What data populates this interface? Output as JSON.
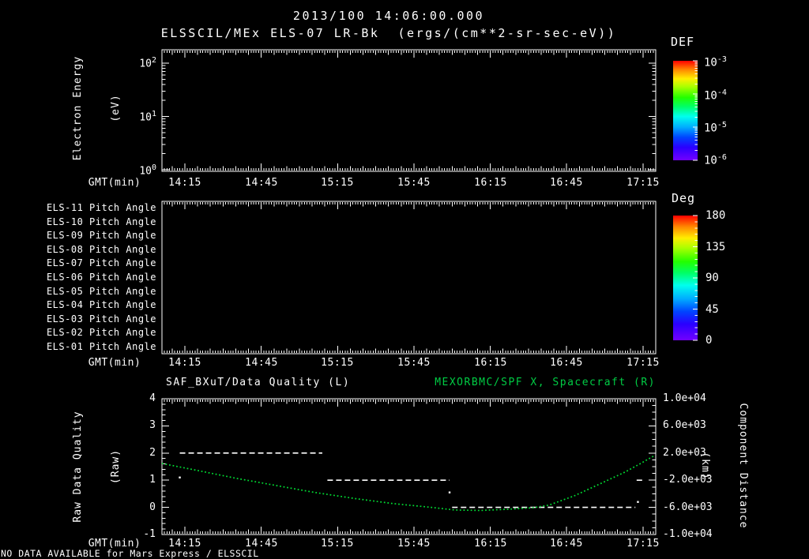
{
  "header": {
    "title_line1": "2013/100 14:06:00.000",
    "title_line2": "ELSSCIL/MEx ELS-07 LR-Bk  (ergs/(cm**2-sr-sec-eV))"
  },
  "time_axis": {
    "label": "GMT(min)",
    "tick_labels": [
      "14:15",
      "14:45",
      "15:15",
      "15:45",
      "16:15",
      "16:45",
      "17:15"
    ]
  },
  "plots": {
    "energy": {
      "ylabel_line1": "Electron Energy",
      "ylabel_line2": "(eV)",
      "yticks": [
        {
          "base": "10",
          "exp": "2"
        },
        {
          "base": "10",
          "exp": "1"
        },
        {
          "base": "10",
          "exp": "0"
        }
      ],
      "colorbar": {
        "title": "DEF",
        "tick_labels": [
          {
            "base": "10",
            "exp": "-3"
          },
          {
            "base": "10",
            "exp": "-4"
          },
          {
            "base": "10",
            "exp": "-5"
          },
          {
            "base": "10",
            "exp": "-6"
          }
        ]
      }
    },
    "pitch": {
      "row_labels": [
        "ELS-11 Pitch Angle",
        "ELS-10 Pitch Angle",
        "ELS-09 Pitch Angle",
        "ELS-08 Pitch Angle",
        "ELS-07 Pitch Angle",
        "ELS-06 Pitch Angle",
        "ELS-05 Pitch Angle",
        "ELS-04 Pitch Angle",
        "ELS-03 Pitch Angle",
        "ELS-02 Pitch Angle",
        "ELS-01 Pitch Angle"
      ],
      "colorbar": {
        "title": "Deg",
        "tick_labels": [
          "180",
          "135",
          "90",
          "45",
          "0"
        ]
      }
    },
    "quality": {
      "title_left": "SAF_BXuT/Data Quality (L)",
      "title_right": "MEXORBMC/SPF X, Spacecraft (R)",
      "ylabel_line1": "Raw Data Quality",
      "ylabel_line2": "(Raw)",
      "left_tick_labels": [
        "4",
        "3",
        "2",
        "1",
        "0",
        "-1"
      ],
      "right_tick_labels": [
        "1.0e+04",
        "6.0e+03",
        "2.0e+03",
        "-2.0e+03",
        "-6.0e+03",
        "-1.0e+04"
      ],
      "right_label_line1": "Component Distance",
      "right_label_line2": "(km)"
    }
  },
  "footer": "NO DATA AVAILABLE for Mars Express / ELSSCIL",
  "colors": {
    "background": "#000000",
    "axes_text": "#ffffff",
    "accent_green": "#00cc44",
    "curve_green": "#00dd33",
    "rainbow_top_to_bottom": [
      "#ff0000",
      "#ff8800",
      "#ffee00",
      "#22ff00",
      "#00ffee",
      "#0044ff",
      "#7300ff"
    ]
  },
  "chart_data": [
    {
      "type": "heatmap",
      "title": "ELSSCIL/MEx ELS-07 LR-Bk electron energy spectrogram",
      "status": "no data plotted (panel empty)",
      "x_axis": {
        "label": "GMT(min)",
        "tick_minutes": [
          855,
          885,
          915,
          945,
          975,
          1005,
          1035
        ],
        "range_minutes": [
          846,
          1040
        ]
      },
      "y_axis": {
        "label": "Electron Energy (eV)",
        "scale": "log",
        "ticks": [
          1,
          10,
          100
        ]
      },
      "colorbar": {
        "title": "DEF",
        "units": "ergs/(cm**2-sr-sec-eV)",
        "scale": "log",
        "ticks": [
          0.001,
          0.0001,
          1e-05,
          1e-06
        ],
        "range": [
          1e-06,
          0.001
        ]
      },
      "values": []
    },
    {
      "type": "heatmap",
      "title": "ELS anode pitch angles",
      "status": "no data plotted (panel empty)",
      "rows": [
        "ELS-11",
        "ELS-10",
        "ELS-09",
        "ELS-08",
        "ELS-07",
        "ELS-06",
        "ELS-05",
        "ELS-04",
        "ELS-03",
        "ELS-02",
        "ELS-01"
      ],
      "x_axis": {
        "label": "GMT(min)",
        "tick_minutes": [
          855,
          885,
          915,
          945,
          975,
          1005,
          1035
        ],
        "range_minutes": [
          846,
          1040
        ]
      },
      "colorbar": {
        "title": "Deg",
        "ticks": [
          180,
          135,
          90,
          45,
          0
        ],
        "range": [
          0,
          180
        ]
      },
      "values": []
    },
    {
      "type": "line",
      "x_axis": {
        "label": "GMT(min)",
        "tick_minutes": [
          855,
          885,
          915,
          945,
          975,
          1005,
          1035
        ],
        "range_minutes": [
          846,
          1040
        ]
      },
      "left_axis": {
        "label": "Raw Data Quality (Raw)",
        "ticks": [
          4,
          3,
          2,
          1,
          0,
          -1
        ],
        "range": [
          -1,
          4
        ]
      },
      "right_axis": {
        "label": "Component Distance (km)",
        "ticks": [
          10000,
          6000,
          2000,
          -2000,
          -6000,
          -10000
        ],
        "range": [
          -10000,
          10000
        ]
      },
      "series": [
        {
          "name": "SAF_BXuT/Data Quality (L)",
          "axis": "left",
          "color": "#ffffff",
          "style": "dashed",
          "segments": [
            {
              "value": 2,
              "t_start": 853,
              "t_end": 909
            },
            {
              "value": 1,
              "t_start": 911,
              "t_end": 959
            },
            {
              "value": 0,
              "t_start": 960,
              "t_end": 1032
            },
            {
              "value": 1,
              "t_start": 1032.5,
              "t_end": 1035
            }
          ],
          "points": [
            {
              "t": 853,
              "value": 1.1
            },
            {
              "t": 959,
              "value": 0.55
            },
            {
              "t": 1033,
              "value": 0.2
            }
          ]
        },
        {
          "name": "MEXORBMC/SPF X, Spacecraft (R)",
          "axis": "right",
          "color": "#00dd33",
          "style": "dotted",
          "points_t_km": [
            [
              846,
              465
            ],
            [
              860,
              -575
            ],
            [
              875,
              -1710
            ],
            [
              891,
              -2790
            ],
            [
              906,
              -3800
            ],
            [
              922,
              -4710
            ],
            [
              937,
              -5450
            ],
            [
              950,
              -5930
            ],
            [
              961,
              -6380
            ],
            [
              971,
              -6455
            ],
            [
              982,
              -6280
            ],
            [
              992,
              -6050
            ],
            [
              998,
              -5680
            ],
            [
              1008,
              -4300
            ],
            [
              1018,
              -2560
            ],
            [
              1028,
              -790
            ],
            [
              1034,
              450
            ],
            [
              1039.5,
              1630
            ]
          ]
        }
      ]
    }
  ]
}
